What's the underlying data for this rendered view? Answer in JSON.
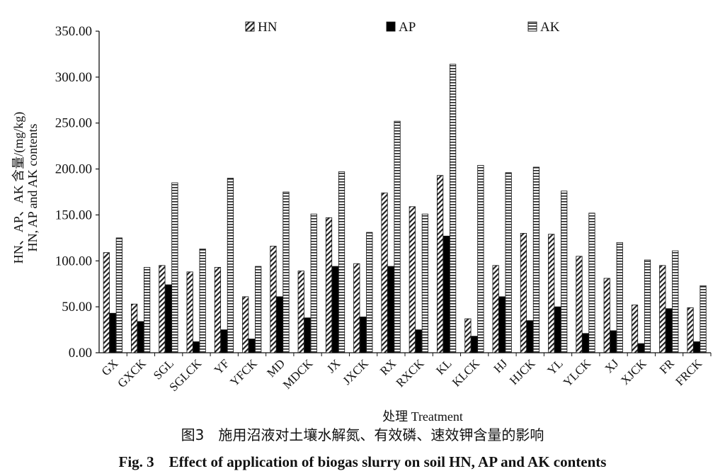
{
  "chart_data": {
    "type": "bar",
    "title": "",
    "xlabel": "处理 Treatment",
    "ylabel_cn": "HN、AP、AK 含量/(mg/kg)",
    "ylabel_en": "HN, AP and AK contents",
    "ylim": [
      0,
      350
    ],
    "yticks": [
      "0.00",
      "50.00",
      "100.00",
      "150.00",
      "200.00",
      "250.00",
      "300.00",
      "350.00"
    ],
    "categories": [
      "GX",
      "GXCK",
      "SGL",
      "SGLCK",
      "YF",
      "YFCK",
      "MD",
      "MDCK",
      "JX",
      "JXCK",
      "RX",
      "RXCK",
      "KL",
      "KLCK",
      "HJ",
      "HJCK",
      "YL",
      "YLCK",
      "XJ",
      "XJCK",
      "FR",
      "FRCK"
    ],
    "series": [
      {
        "name": "HN",
        "pattern": "hatch",
        "values": [
          109,
          53,
          95,
          88,
          93,
          61,
          116,
          89,
          147,
          97,
          174,
          159,
          193,
          37,
          95,
          130,
          129,
          105,
          81,
          52,
          95,
          49
        ]
      },
      {
        "name": "AP",
        "pattern": "solid",
        "values": [
          43,
          34,
          74,
          12,
          25,
          15,
          61,
          38,
          94,
          39,
          94,
          25,
          127,
          18,
          61,
          35,
          50,
          21,
          24,
          10,
          48,
          12
        ]
      },
      {
        "name": "AK",
        "pattern": "stripes",
        "values": [
          125,
          93,
          185,
          113,
          190,
          94,
          175,
          151,
          197,
          131,
          252,
          151,
          314,
          204,
          196,
          202,
          176,
          152,
          120,
          101,
          111,
          73
        ]
      }
    ],
    "legend_position": "top",
    "grid": false
  },
  "captions": {
    "cn": "图3　施用沼液对土壤水解氮、有效磷、速效钾含量的影响",
    "en": "Fig. 3　Effect of application of biogas slurry on soil HN, AP and AK contents"
  }
}
